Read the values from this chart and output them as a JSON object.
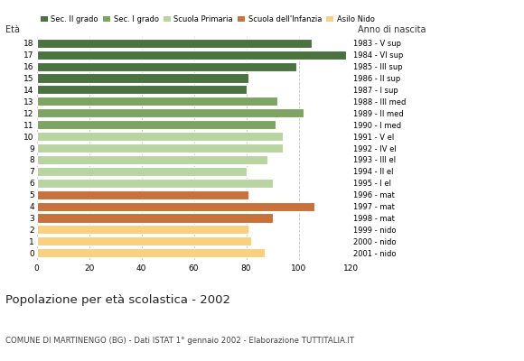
{
  "ages": [
    18,
    17,
    16,
    15,
    14,
    13,
    12,
    11,
    10,
    9,
    8,
    7,
    6,
    5,
    4,
    3,
    2,
    1,
    0
  ],
  "values": [
    105,
    118,
    99,
    81,
    80,
    92,
    102,
    91,
    94,
    94,
    88,
    80,
    90,
    81,
    106,
    90,
    81,
    82,
    87
  ],
  "anno_nascita": [
    "1983 - V sup",
    "1984 - VI sup",
    "1985 - III sup",
    "1986 - II sup",
    "1987 - I sup",
    "1988 - III med",
    "1989 - II med",
    "1990 - I med",
    "1991 - V el",
    "1992 - IV el",
    "1993 - III el",
    "1994 - II el",
    "1995 - I el",
    "1996 - mat",
    "1997 - mat",
    "1998 - mat",
    "1999 - nido",
    "2000 - nido",
    "2001 - nido"
  ],
  "colors_by_age": {
    "18": "#4a7340",
    "17": "#4a7340",
    "16": "#4a7340",
    "15": "#4a7340",
    "14": "#4a7340",
    "13": "#7da462",
    "12": "#7da462",
    "11": "#7da462",
    "10": "#b8d4a0",
    "9": "#b8d4a0",
    "8": "#b8d4a0",
    "7": "#b8d4a0",
    "6": "#b8d4a0",
    "5": "#c8713a",
    "4": "#c8713a",
    "3": "#c8713a",
    "2": "#f7d080",
    "1": "#f7d080",
    "0": "#f7d080"
  },
  "title": "Popolazione per età scolastica - 2002",
  "subtitle": "COMUNE DI MARTINENGO (BG) - Dati ISTAT 1° gennaio 2002 - Elaborazione TUTTITALIA.IT",
  "ylabel": "Età",
  "anno_label": "Anno di nascita",
  "xlim": [
    0,
    120
  ],
  "xticks": [
    0,
    20,
    40,
    60,
    80,
    100,
    120
  ],
  "legend_labels": [
    "Sec. II grado",
    "Sec. I grado",
    "Scuola Primaria",
    "Scuola dell'Infanzia",
    "Asilo Nido"
  ],
  "legend_colors": [
    "#4a7340",
    "#7da462",
    "#b8d4a0",
    "#c8713a",
    "#f7d080"
  ],
  "bg_color": "#ffffff",
  "grid_color": "#bbbbbb",
  "bar_height": 0.78
}
